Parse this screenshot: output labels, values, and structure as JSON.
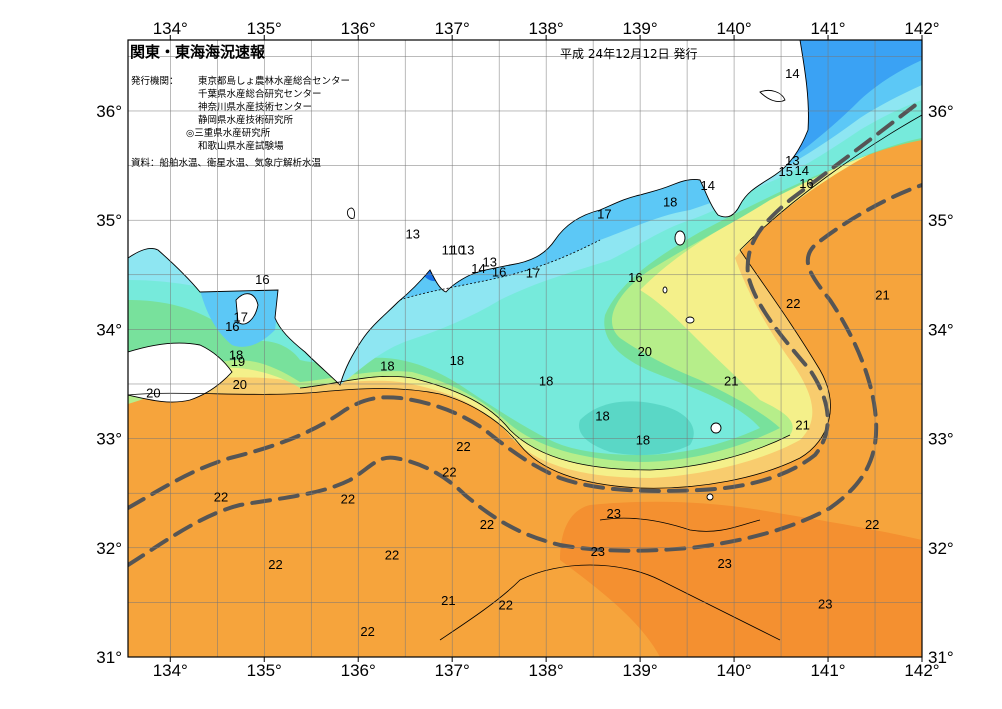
{
  "header": {
    "title": "関東・東海海況速報",
    "date": "平成 24年12月12日 発行",
    "issuers_label": "発行機関：",
    "issuers": [
      "東京都島しょ農林水産総合センター",
      "千葉県水産総合研究センター",
      "神奈川県水産技術センター",
      "静岡県水産技術研究所",
      "◎三重県水産研究所",
      "和歌山県水産試験場"
    ],
    "sources": "資料：船舶水温、衛星水温、気象庁解析水温"
  },
  "axes": {
    "lon_range": [
      133.55,
      142.0
    ],
    "lat_range": [
      31.0,
      36.65
    ],
    "lon_ticks": [
      "134°",
      "135°",
      "136°",
      "137°",
      "138°",
      "139°",
      "140°",
      "141°",
      "142°"
    ],
    "lon_tick_values": [
      134,
      135,
      136,
      137,
      138,
      139,
      140,
      141,
      142
    ],
    "lat_ticks": [
      "31°",
      "32°",
      "33°",
      "34°",
      "35°",
      "36°"
    ],
    "lat_tick_values": [
      31,
      32,
      33,
      34,
      35,
      36
    ],
    "grid": "0.5-degree graticule"
  },
  "colors": {
    "land": "#ffffff",
    "temp_13_14": "#1670e8",
    "temp_14_15": "#3aa2f4",
    "temp_15_16": "#5cc8f6",
    "temp_16_17": "#8ee6f2",
    "temp_17_18": "#76eadb",
    "temp_18_19": "#78e19c",
    "temp_19_20": "#b6ee8a",
    "temp_20_21": "#f4f08a",
    "temp_21_22": "#f8cc6e",
    "temp_22_23": "#f6a43c",
    "temp_23": "#f49030",
    "kuroshio_axis": "#555555"
  },
  "map": {
    "type": "sea surface temperature contour map",
    "contour_unit": "°C",
    "isotherm_labels": [
      {
        "value": "14",
        "lon": 140.62,
        "lat": 36.35
      },
      {
        "value": "13",
        "lon": 140.62,
        "lat": 35.55
      },
      {
        "value": "15",
        "lon": 140.55,
        "lat": 35.45
      },
      {
        "value": "14",
        "lon": 140.72,
        "lat": 35.46
      },
      {
        "value": "16",
        "lon": 140.77,
        "lat": 35.34
      },
      {
        "value": "14",
        "lon": 139.72,
        "lat": 35.32
      },
      {
        "value": "18",
        "lon": 139.32,
        "lat": 35.17
      },
      {
        "value": "17",
        "lon": 138.62,
        "lat": 35.06
      },
      {
        "value": "13",
        "lon": 136.58,
        "lat": 34.88
      },
      {
        "value": "11",
        "lon": 136.96,
        "lat": 34.73
      },
      {
        "value": "10",
        "lon": 137.06,
        "lat": 34.73
      },
      {
        "value": "13",
        "lon": 137.16,
        "lat": 34.73
      },
      {
        "value": "13",
        "lon": 137.4,
        "lat": 34.62
      },
      {
        "value": "14",
        "lon": 137.28,
        "lat": 34.56
      },
      {
        "value": "16",
        "lon": 137.5,
        "lat": 34.53
      },
      {
        "value": "17",
        "lon": 137.86,
        "lat": 34.52
      },
      {
        "value": "16",
        "lon": 138.95,
        "lat": 34.48
      },
      {
        "value": "16",
        "lon": 134.98,
        "lat": 34.46
      },
      {
        "value": "17",
        "lon": 134.75,
        "lat": 34.12
      },
      {
        "value": "16",
        "lon": 134.66,
        "lat": 34.03
      },
      {
        "value": "18",
        "lon": 134.7,
        "lat": 33.77
      },
      {
        "value": "19",
        "lon": 134.72,
        "lat": 33.71
      },
      {
        "value": "20",
        "lon": 134.74,
        "lat": 33.5
      },
      {
        "value": "20",
        "lon": 133.82,
        "lat": 33.42
      },
      {
        "value": "18",
        "lon": 136.31,
        "lat": 33.67
      },
      {
        "value": "18",
        "lon": 137.05,
        "lat": 33.72
      },
      {
        "value": "18",
        "lon": 138.0,
        "lat": 33.53
      },
      {
        "value": "20",
        "lon": 139.05,
        "lat": 33.8
      },
      {
        "value": "18",
        "lon": 138.6,
        "lat": 33.21
      },
      {
        "value": "18",
        "lon": 139.03,
        "lat": 32.99
      },
      {
        "value": "21",
        "lon": 139.97,
        "lat": 33.53
      },
      {
        "value": "21",
        "lon": 140.73,
        "lat": 33.13
      },
      {
        "value": "22",
        "lon": 140.63,
        "lat": 34.24
      },
      {
        "value": "21",
        "lon": 141.58,
        "lat": 34.32
      },
      {
        "value": "22",
        "lon": 137.12,
        "lat": 32.93
      },
      {
        "value": "22",
        "lon": 136.97,
        "lat": 32.7
      },
      {
        "value": "22",
        "lon": 134.54,
        "lat": 32.47
      },
      {
        "value": "22",
        "lon": 135.89,
        "lat": 32.45
      },
      {
        "value": "22",
        "lon": 137.37,
        "lat": 32.22
      },
      {
        "value": "23",
        "lon": 138.72,
        "lat": 32.32
      },
      {
        "value": "23",
        "lon": 138.55,
        "lat": 31.97
      },
      {
        "value": "22",
        "lon": 141.47,
        "lat": 32.22
      },
      {
        "value": "22",
        "lon": 135.12,
        "lat": 31.85
      },
      {
        "value": "22",
        "lon": 136.36,
        "lat": 31.94
      },
      {
        "value": "23",
        "lon": 139.9,
        "lat": 31.86
      },
      {
        "value": "21",
        "lon": 136.96,
        "lat": 31.52
      },
      {
        "value": "22",
        "lon": 137.57,
        "lat": 31.48
      },
      {
        "value": "23",
        "lon": 140.97,
        "lat": 31.49
      },
      {
        "value": "22",
        "lon": 136.1,
        "lat": 31.24
      }
    ]
  }
}
